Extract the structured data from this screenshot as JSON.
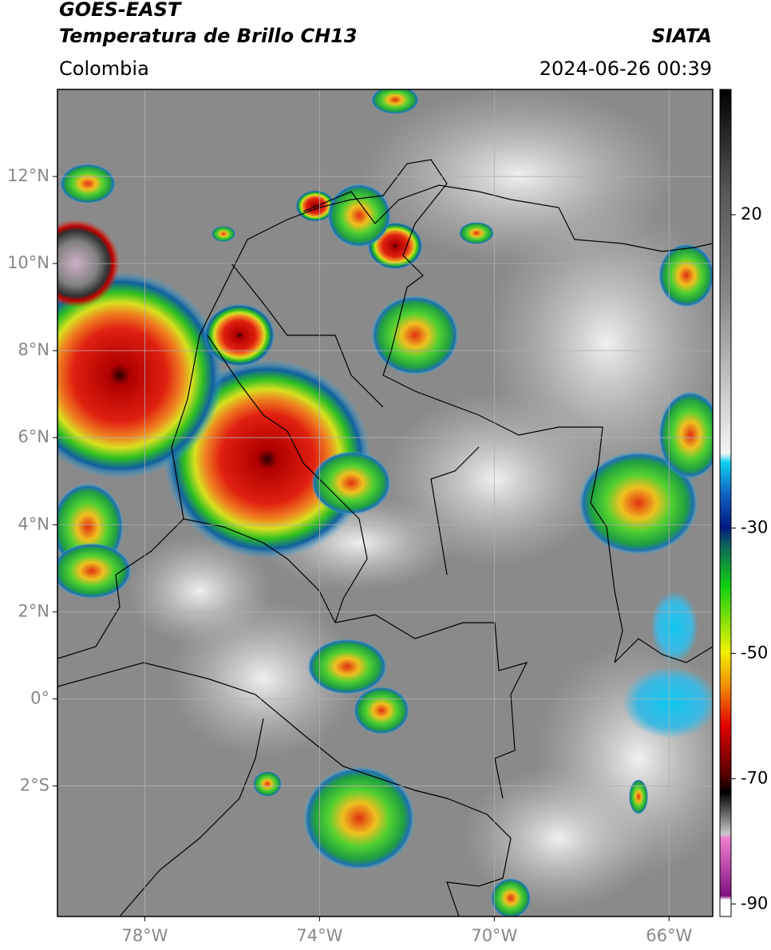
{
  "header": {
    "title_line1": "GOES-EAST",
    "title_line2": "Temperatura de Brillo CH13",
    "source": "SIATA",
    "region": "Colombia",
    "datetime": "2024-06-26 00:39"
  },
  "map": {
    "xlim": [
      -80,
      -65
    ],
    "ylim": [
      -5,
      14
    ],
    "xticks": [
      {
        "value": -78,
        "label": "78°W"
      },
      {
        "value": -74,
        "label": "74°W"
      },
      {
        "value": -70,
        "label": "70°W"
      },
      {
        "value": -66,
        "label": "66°W"
      }
    ],
    "yticks": [
      {
        "value": 12,
        "label": "12°N"
      },
      {
        "value": 10,
        "label": "10°N"
      },
      {
        "value": 8,
        "label": "8°N"
      },
      {
        "value": 6,
        "label": "6°N"
      },
      {
        "value": 4,
        "label": "4°N"
      },
      {
        "value": 2,
        "label": "2°N"
      },
      {
        "value": 0,
        "label": "0°"
      },
      {
        "value": -2,
        "label": "2°S"
      }
    ],
    "grid": true
  },
  "colorbar": {
    "lim": [
      -92,
      40
    ],
    "ticks": [
      20,
      -30,
      -50,
      -70,
      -90
    ]
  }
}
